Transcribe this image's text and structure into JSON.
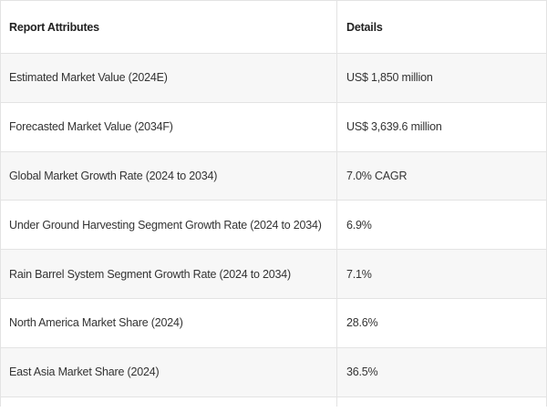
{
  "table": {
    "headers": {
      "attribute": "Report Attributes",
      "details": "Details"
    },
    "rows": [
      {
        "attribute": "Estimated Market Value (2024E)",
        "details": "US$ 1,850 million"
      },
      {
        "attribute": "Forecasted Market Value (2034F)",
        "details": "US$ 3,639.6 million"
      },
      {
        "attribute": "Global Market Growth Rate (2024 to 2034)",
        "details": "7.0% CAGR"
      },
      {
        "attribute": "Under Ground Harvesting Segment Growth Rate (2024 to 2034)",
        "details": "6.9%"
      },
      {
        "attribute": "Rain Barrel System Segment Growth Rate (2024 to 2034)",
        "details": "7.1%"
      },
      {
        "attribute": "North America Market Share (2024)",
        "details": "28.6%"
      },
      {
        "attribute": "East Asia Market Share (2024)",
        "details": "36.5%"
      }
    ]
  }
}
